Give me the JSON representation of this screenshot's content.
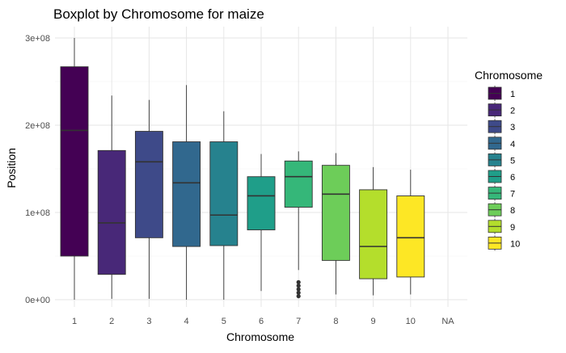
{
  "chart_data": {
    "type": "boxplot",
    "title": "Boxplot by Chromosome for maize",
    "xlabel": "Chromosome",
    "ylabel": "Position",
    "ylim": [
      0,
      320000000
    ],
    "y_ticks": [
      0,
      100000000,
      200000000,
      300000000
    ],
    "y_tick_labels": [
      "0e+00",
      "1e+08",
      "2e+08",
      "3e+08"
    ],
    "categories": [
      "1",
      "2",
      "3",
      "4",
      "5",
      "6",
      "7",
      "8",
      "9",
      "10",
      "NA"
    ],
    "grid": true,
    "legend": {
      "title": "Chromosome",
      "position": "right",
      "entries": [
        "1",
        "2",
        "3",
        "4",
        "5",
        "6",
        "7",
        "8",
        "9",
        "10"
      ]
    },
    "boxes": [
      {
        "category": "1",
        "min": 0,
        "q1": 50000000,
        "median": 194000000,
        "q3": 267000000,
        "max": 300000000,
        "outliers": [],
        "color": "#440154"
      },
      {
        "category": "2",
        "min": 1000000,
        "q1": 29000000,
        "median": 88000000,
        "q3": 171000000,
        "max": 234000000,
        "outliers": [],
        "color": "#482878"
      },
      {
        "category": "3",
        "min": 1000000,
        "q1": 71000000,
        "median": 158000000,
        "q3": 193000000,
        "max": 229000000,
        "outliers": [],
        "color": "#3E4A89"
      },
      {
        "category": "4",
        "min": 0,
        "q1": 61000000,
        "median": 134000000,
        "q3": 181000000,
        "max": 246000000,
        "outliers": [],
        "color": "#31688E"
      },
      {
        "category": "5",
        "min": 0,
        "q1": 62000000,
        "median": 97000000,
        "q3": 181000000,
        "max": 216000000,
        "outliers": [],
        "color": "#26828E"
      },
      {
        "category": "6",
        "min": 10000000,
        "q1": 80000000,
        "median": 119000000,
        "q3": 141000000,
        "max": 167000000,
        "outliers": [],
        "color": "#1F9E89"
      },
      {
        "category": "7",
        "min": 34000000,
        "q1": 106000000,
        "median": 141000000,
        "q3": 159000000,
        "max": 170000000,
        "outliers": [
          4000000,
          8000000,
          12000000,
          16000000,
          20000000
        ],
        "color": "#35B779"
      },
      {
        "category": "8",
        "min": 6000000,
        "q1": 45000000,
        "median": 121000000,
        "q3": 154000000,
        "max": 168000000,
        "outliers": [],
        "color": "#6DCD59"
      },
      {
        "category": "9",
        "min": 5000000,
        "q1": 24000000,
        "median": 61000000,
        "q3": 126000000,
        "max": 152000000,
        "outliers": [],
        "color": "#B4DE2C"
      },
      {
        "category": "10",
        "min": 6000000,
        "q1": 26000000,
        "median": 71000000,
        "q3": 119000000,
        "max": 149000000,
        "outliers": [],
        "color": "#FDE725"
      }
    ]
  }
}
